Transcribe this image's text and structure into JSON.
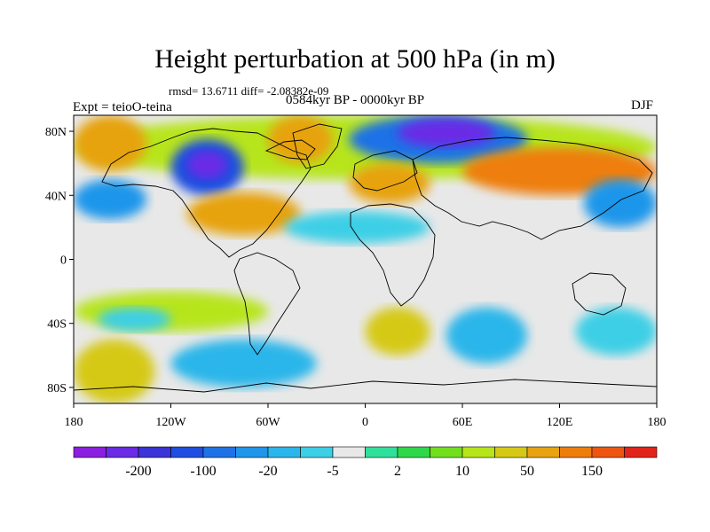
{
  "chart_data": {
    "type": "heatmap",
    "title": "Height perturbation at 500 hPa (in m)",
    "stats_line": "rmsd= 13.6711 diff= -2.08382e-09",
    "period_label": "0584kyr BP - 0000kyr BP",
    "experiment_label": "Expt = teioO-teina",
    "season_label": "DJF",
    "x_axis": {
      "range": [
        -180,
        180
      ],
      "ticks": [
        {
          "value": -180,
          "label": "180"
        },
        {
          "value": -120,
          "label": "120W"
        },
        {
          "value": -60,
          "label": "60W"
        },
        {
          "value": 0,
          "label": "0"
        },
        {
          "value": 60,
          "label": "60E"
        },
        {
          "value": 120,
          "label": "120E"
        },
        {
          "value": 180,
          "label": "180"
        }
      ]
    },
    "y_axis": {
      "range": [
        -90,
        90
      ],
      "ticks": [
        {
          "value": 80,
          "label": "80N"
        },
        {
          "value": 40,
          "label": "40N"
        },
        {
          "value": 0,
          "label": "0"
        },
        {
          "value": -40,
          "label": "40S"
        },
        {
          "value": -80,
          "label": "80S"
        }
      ]
    },
    "colorbar": {
      "colors": [
        "#8a1fe0",
        "#6a2ae6",
        "#3a33d6",
        "#1f4de0",
        "#1f72e6",
        "#1e96ea",
        "#2ab6ea",
        "#3ccfe6",
        "#e8e8e8",
        "#2fe09a",
        "#2ed84a",
        "#72df1e",
        "#b7e51a",
        "#d6c915",
        "#e7a311",
        "#ee7e0c",
        "#ee5510",
        "#e2231b"
      ],
      "labels": [
        {
          "after_index": 1,
          "text": "-200"
        },
        {
          "after_index": 3,
          "text": "-100"
        },
        {
          "after_index": 5,
          "text": "-20"
        },
        {
          "after_index": 7,
          "text": "-5"
        },
        {
          "after_index": 9,
          "text": "2"
        },
        {
          "after_index": 11,
          "text": "10"
        },
        {
          "after_index": 13,
          "text": "50"
        },
        {
          "after_index": 15,
          "text": "150"
        }
      ]
    },
    "background_level_index": 8,
    "regions": [
      {
        "label": "NH polar band",
        "lon": [
          -180,
          180
        ],
        "lat": [
          50,
          90
        ],
        "value": 10
      },
      {
        "label": "North Pacific low",
        "lon": [
          -180,
          -135
        ],
        "lat": [
          25,
          50
        ],
        "value": -30
      },
      {
        "label": "Arctic Asia positive",
        "lon": [
          -180,
          -135
        ],
        "lat": [
          55,
          90
        ],
        "value": 60
      },
      {
        "label": "Greenland positive",
        "lon": [
          -60,
          -20
        ],
        "lat": [
          60,
          90
        ],
        "value": 50
      },
      {
        "label": "North America trough",
        "lon": [
          -120,
          -75
        ],
        "lat": [
          40,
          75
        ],
        "value": -120
      },
      {
        "label": "North America trough core",
        "lon": [
          -110,
          -85
        ],
        "lat": [
          50,
          68
        ],
        "value": -220
      },
      {
        "label": "Atlantic ridge",
        "lon": [
          -110,
          -40
        ],
        "lat": [
          15,
          42
        ],
        "value": 50
      },
      {
        "label": "Eurasian polar trough",
        "lon": [
          -10,
          100
        ],
        "lat": [
          60,
          90
        ],
        "value": -100
      },
      {
        "label": "Eurasian polar trough core",
        "lon": [
          20,
          80
        ],
        "lat": [
          70,
          88
        ],
        "value": -220
      },
      {
        "label": "Europe positive",
        "lon": [
          -10,
          40
        ],
        "lat": [
          35,
          60
        ],
        "value": 50
      },
      {
        "label": "Asia positive",
        "lon": [
          60,
          180
        ],
        "lat": [
          40,
          70
        ],
        "value": 100
      },
      {
        "label": "East Asia low",
        "lon": [
          135,
          180
        ],
        "lat": [
          20,
          50
        ],
        "value": -30
      },
      {
        "label": "Tropical Atlantic low",
        "lon": [
          -50,
          40
        ],
        "lat": [
          10,
          30
        ],
        "value": -10
      },
      {
        "label": "Southern Pacific positive",
        "lon": [
          -180,
          -60
        ],
        "lat": [
          -45,
          -20
        ],
        "value": 10
      },
      {
        "label": "South Pacific low",
        "lon": [
          -165,
          -120
        ],
        "lat": [
          -45,
          -30
        ],
        "value": -10
      },
      {
        "label": "Southern Ocean low",
        "lon": [
          -120,
          -30
        ],
        "lat": [
          -80,
          -50
        ],
        "value": -20
      },
      {
        "label": "South Atlantic positive",
        "lon": [
          0,
          40
        ],
        "lat": [
          -60,
          -30
        ],
        "value": 30
      },
      {
        "label": "South Indian low",
        "lon": [
          50,
          100
        ],
        "lat": [
          -65,
          -30
        ],
        "value": -20
      },
      {
        "label": "Southern positive band",
        "lon": [
          -180,
          -130
        ],
        "lat": [
          -90,
          -50
        ],
        "value": 30
      },
      {
        "label": "Australia low",
        "lon": [
          130,
          180
        ],
        "lat": [
          -60,
          -30
        ],
        "value": -10
      }
    ]
  }
}
